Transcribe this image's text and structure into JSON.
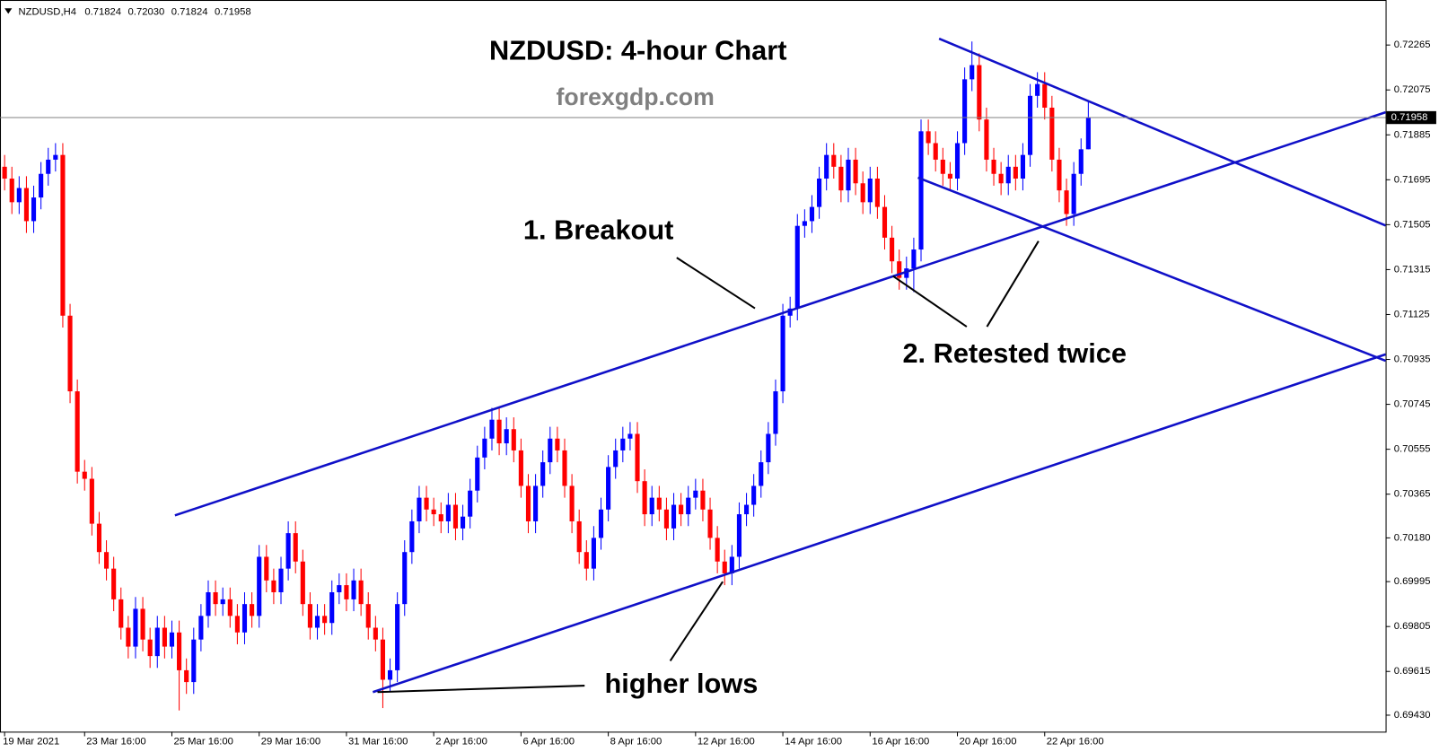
{
  "chart_data": {
    "type": "candlestick",
    "symbol": "NZDUSD,H4",
    "last_ohlc_labels": [
      "0.71824",
      "0.72030",
      "0.71824",
      "0.71958"
    ],
    "title": "NZDUSD: 4-hour Chart",
    "subtitle": "forexgdp.com",
    "annotations": [
      "1. Breakout",
      "2. Retested twice",
      "higher lows"
    ],
    "up_color": "#0000ff",
    "down_color": "#ff0000",
    "ylim": [
      0.69368,
      0.72436
    ],
    "yticks": [
      0.72265,
      0.72075,
      0.71885,
      0.71695,
      0.71505,
      0.71315,
      0.71125,
      0.70935,
      0.70745,
      0.70555,
      0.70365,
      {
        "value": 0.7018,
        "label": "0.70180"
      },
      0.69995,
      0.69805,
      0.69615,
      {
        "value": 0.6943,
        "label": "0.69430"
      }
    ],
    "categories": [
      "19 Mar 2021",
      null,
      null,
      null,
      null,
      null,
      null,
      null,
      null,
      null,
      null,
      "23 Mar 16:00",
      null,
      null,
      null,
      null,
      null,
      null,
      null,
      null,
      null,
      null,
      null,
      "25 Mar 16:00",
      null,
      null,
      null,
      null,
      null,
      null,
      null,
      null,
      null,
      null,
      null,
      "29 Mar 16:00",
      null,
      null,
      null,
      null,
      null,
      null,
      null,
      null,
      null,
      null,
      null,
      "31 Mar 16:00",
      null,
      null,
      null,
      null,
      null,
      null,
      null,
      null,
      null,
      null,
      null,
      "2 Apr 16:00",
      null,
      null,
      null,
      null,
      null,
      null,
      null,
      null,
      null,
      null,
      null,
      "6 Apr 16:00",
      null,
      null,
      null,
      null,
      null,
      null,
      null,
      null,
      null,
      null,
      null,
      "8 Apr 16:00",
      null,
      null,
      null,
      null,
      null,
      null,
      null,
      null,
      null,
      null,
      null,
      "12 Apr 16:00",
      null,
      null,
      null,
      null,
      null,
      null,
      null,
      null,
      null,
      null,
      null,
      "14 Apr 16:00",
      null,
      null,
      null,
      null,
      null,
      null,
      null,
      null,
      null,
      null,
      null,
      "16 Apr 16:00",
      null,
      null,
      null,
      null,
      null,
      null,
      null,
      null,
      null,
      null,
      null,
      "20 Apr 16:00",
      null,
      null,
      null,
      null,
      null,
      null,
      null,
      null,
      null,
      null,
      null,
      "22 Apr 16:00",
      null,
      null,
      null,
      null,
      null,
      null
    ],
    "open": [
      0.7175,
      0.717,
      0.716,
      0.7166,
      0.7152,
      0.7162,
      0.7172,
      0.7178,
      0.718,
      0.7112,
      0.708,
      0.7046,
      0.7043,
      0.7024,
      0.7012,
      0.7005,
      0.6992,
      0.698,
      0.6972,
      0.6988,
      0.6975,
      0.6968,
      0.698,
      0.6972,
      0.6978,
      0.6962,
      0.6957,
      0.6975,
      0.6985,
      0.6995,
      0.699,
      0.6992,
      0.6985,
      0.6978,
      0.699,
      0.6985,
      0.701,
      0.7,
      0.6995,
      0.7005,
      0.702,
      0.7008,
      0.699,
      0.698,
      0.6985,
      0.6982,
      0.6995,
      0.6998,
      0.6992,
      0.7,
      0.699,
      0.698,
      0.6975,
      0.6958,
      0.6962,
      0.699,
      0.7012,
      0.7025,
      0.7035,
      0.703,
      0.7028,
      0.7025,
      0.7032,
      0.7022,
      0.7027,
      0.7038,
      0.7052,
      0.706,
      0.7068,
      0.7058,
      0.7064,
      0.7055,
      0.704,
      0.7025,
      0.704,
      0.705,
      0.706,
      0.7055,
      0.704,
      0.7025,
      0.7012,
      0.7005,
      0.7018,
      0.703,
      0.7048,
      0.7055,
      0.706,
      0.7062,
      0.7042,
      0.7028,
      0.7035,
      0.703,
      0.7022,
      0.7032,
      0.7028,
      0.7035,
      0.7038,
      0.703,
      0.7018,
      0.7008,
      0.7003,
      0.701,
      0.7028,
      0.7032,
      0.704,
      0.705,
      0.7062,
      0.708,
      0.7112,
      0.7115,
      0.715,
      0.7152,
      0.7158,
      0.717,
      0.718,
      0.7175,
      0.7165,
      0.7178,
      0.7168,
      0.716,
      0.717,
      0.7158,
      0.7145,
      0.7135,
      0.7128,
      0.7132,
      0.714,
      0.719,
      0.7185,
      0.7178,
      0.7172,
      0.717,
      0.7185,
      0.7212,
      0.7218,
      0.7195,
      0.7178,
      0.7172,
      0.7168,
      0.7175,
      0.717,
      0.718,
      0.7205,
      0.721,
      0.72,
      0.7178,
      0.7165,
      0.7155,
      0.7172,
      0.71824
    ],
    "high": [
      0.718,
      0.7175,
      0.7171,
      0.7171,
      0.7167,
      0.7177,
      0.7183,
      0.7185,
      0.7185,
      0.7117,
      0.7085,
      0.7051,
      0.7048,
      0.7029,
      0.7017,
      0.701,
      0.6997,
      0.6985,
      0.6993,
      0.6993,
      0.698,
      0.6985,
      0.6985,
      0.6983,
      0.6983,
      0.6967,
      0.698,
      0.699,
      0.7,
      0.7,
      0.6997,
      0.6997,
      0.699,
      0.6995,
      0.6995,
      0.7015,
      0.7015,
      0.7005,
      0.701,
      0.7025,
      0.7025,
      0.7013,
      0.6995,
      0.699,
      0.699,
      0.7,
      0.7003,
      0.7003,
      0.7005,
      0.7005,
      0.6995,
      0.6985,
      0.698,
      0.6967,
      0.6995,
      0.7017,
      0.703,
      0.704,
      0.704,
      0.7035,
      0.7033,
      0.7037,
      0.7037,
      0.7032,
      0.7043,
      0.7057,
      0.7065,
      0.7073,
      0.7073,
      0.7069,
      0.7069,
      0.706,
      0.7045,
      0.7045,
      0.7055,
      0.7065,
      0.7065,
      0.706,
      0.7045,
      0.703,
      0.7017,
      0.7023,
      0.7035,
      0.7053,
      0.706,
      0.7065,
      0.7067,
      0.7067,
      0.7047,
      0.704,
      0.704,
      0.7035,
      0.7037,
      0.7037,
      0.704,
      0.7043,
      0.7043,
      0.7035,
      0.7023,
      0.7013,
      0.7015,
      0.7033,
      0.7037,
      0.7045,
      0.7055,
      0.7067,
      0.7085,
      0.7117,
      0.712,
      0.7155,
      0.7157,
      0.7163,
      0.7175,
      0.7185,
      0.7185,
      0.718,
      0.7183,
      0.7183,
      0.7173,
      0.7175,
      0.7175,
      0.7163,
      0.715,
      0.714,
      0.7137,
      0.7145,
      0.7195,
      0.7195,
      0.719,
      0.7183,
      0.7177,
      0.719,
      0.7217,
      0.7228,
      0.7223,
      0.72,
      0.7183,
      0.7177,
      0.718,
      0.718,
      0.7185,
      0.721,
      0.7215,
      0.7215,
      0.7205,
      0.7183,
      0.717,
      0.7177,
      0.7187,
      0.7203
    ],
    "low": [
      0.7165,
      0.7155,
      0.7155,
      0.7147,
      0.7147,
      0.7157,
      0.7167,
      0.7173,
      0.7107,
      0.7075,
      0.7041,
      0.7038,
      0.7019,
      0.7007,
      0.7,
      0.6987,
      0.6975,
      0.6967,
      0.6967,
      0.697,
      0.6963,
      0.6963,
      0.6967,
      0.6967,
      0.6945,
      0.6952,
      0.6952,
      0.697,
      0.698,
      0.6985,
      0.6985,
      0.698,
      0.6973,
      0.6973,
      0.698,
      0.698,
      0.6995,
      0.699,
      0.699,
      0.7,
      0.7003,
      0.6985,
      0.6975,
      0.6975,
      0.6977,
      0.6977,
      0.699,
      0.6987,
      0.6987,
      0.6985,
      0.6975,
      0.697,
      0.6946,
      0.6953,
      0.6957,
      0.6985,
      0.7007,
      0.702,
      0.7025,
      0.7023,
      0.702,
      0.702,
      0.7017,
      0.7017,
      0.7022,
      0.7033,
      0.7047,
      0.7055,
      0.7053,
      0.7053,
      0.705,
      0.7035,
      0.702,
      0.702,
      0.7035,
      0.7045,
      0.705,
      0.7035,
      0.702,
      0.7007,
      0.7,
      0.7,
      0.7013,
      0.7025,
      0.7043,
      0.705,
      0.7055,
      0.7037,
      0.7023,
      0.7023,
      0.7025,
      0.7017,
      0.7017,
      0.7023,
      0.7023,
      0.703,
      0.7025,
      0.7013,
      0.7003,
      0.6998,
      0.6998,
      0.7005,
      0.7023,
      0.7027,
      0.7035,
      0.7045,
      0.7057,
      0.7075,
      0.7107,
      0.711,
      0.7145,
      0.7147,
      0.7153,
      0.7165,
      0.717,
      0.716,
      0.716,
      0.7163,
      0.7155,
      0.7155,
      0.7153,
      0.714,
      0.713,
      0.7123,
      0.7123,
      0.7122,
      0.7135,
      0.718,
      0.7173,
      0.7167,
      0.7165,
      0.7165,
      0.718,
      0.7207,
      0.719,
      0.7173,
      0.7167,
      0.7163,
      0.7163,
      0.7165,
      0.7165,
      0.7175,
      0.72,
      0.7195,
      0.7173,
      0.716,
      0.715,
      0.715,
      0.7167,
      0.71824
    ],
    "close": [
      0.717,
      0.716,
      0.7166,
      0.7152,
      0.7162,
      0.7172,
      0.7178,
      0.718,
      0.7112,
      0.708,
      0.7046,
      0.7043,
      0.7024,
      0.7012,
      0.7005,
      0.6992,
      0.698,
      0.6972,
      0.6988,
      0.6975,
      0.6968,
      0.698,
      0.6972,
      0.6978,
      0.6962,
      0.6957,
      0.6975,
      0.6985,
      0.6995,
      0.699,
      0.6992,
      0.6985,
      0.6978,
      0.699,
      0.6985,
      0.701,
      0.7,
      0.6995,
      0.7005,
      0.702,
      0.7008,
      0.699,
      0.698,
      0.6985,
      0.6982,
      0.6995,
      0.6998,
      0.6992,
      0.7,
      0.699,
      0.698,
      0.6975,
      0.6958,
      0.6962,
      0.699,
      0.7012,
      0.7025,
      0.7035,
      0.703,
      0.7028,
      0.7025,
      0.7032,
      0.7022,
      0.7027,
      0.7038,
      0.7052,
      0.706,
      0.7068,
      0.7058,
      0.7064,
      0.7055,
      0.704,
      0.7025,
      0.704,
      0.705,
      0.706,
      0.7055,
      0.704,
      0.7025,
      0.7012,
      0.7005,
      0.7018,
      0.703,
      0.7048,
      0.7055,
      0.706,
      0.7062,
      0.7042,
      0.7028,
      0.7035,
      0.703,
      0.7022,
      0.7032,
      0.7028,
      0.7035,
      0.7038,
      0.703,
      0.7018,
      0.7008,
      0.7003,
      0.701,
      0.7028,
      0.7032,
      0.704,
      0.705,
      0.7062,
      0.708,
      0.7112,
      0.7115,
      0.715,
      0.7152,
      0.7158,
      0.717,
      0.718,
      0.7175,
      0.7165,
      0.7178,
      0.7168,
      0.716,
      0.717,
      0.7158,
      0.7145,
      0.7135,
      0.7128,
      0.7132,
      0.714,
      0.719,
      0.7185,
      0.7178,
      0.7172,
      0.717,
      0.7185,
      0.7212,
      0.7218,
      0.7195,
      0.7178,
      0.7172,
      0.7168,
      0.7175,
      0.717,
      0.718,
      0.7205,
      0.721,
      0.72,
      0.7178,
      0.7165,
      0.7155,
      0.7172,
      0.71824,
      0.71958
    ]
  }
}
